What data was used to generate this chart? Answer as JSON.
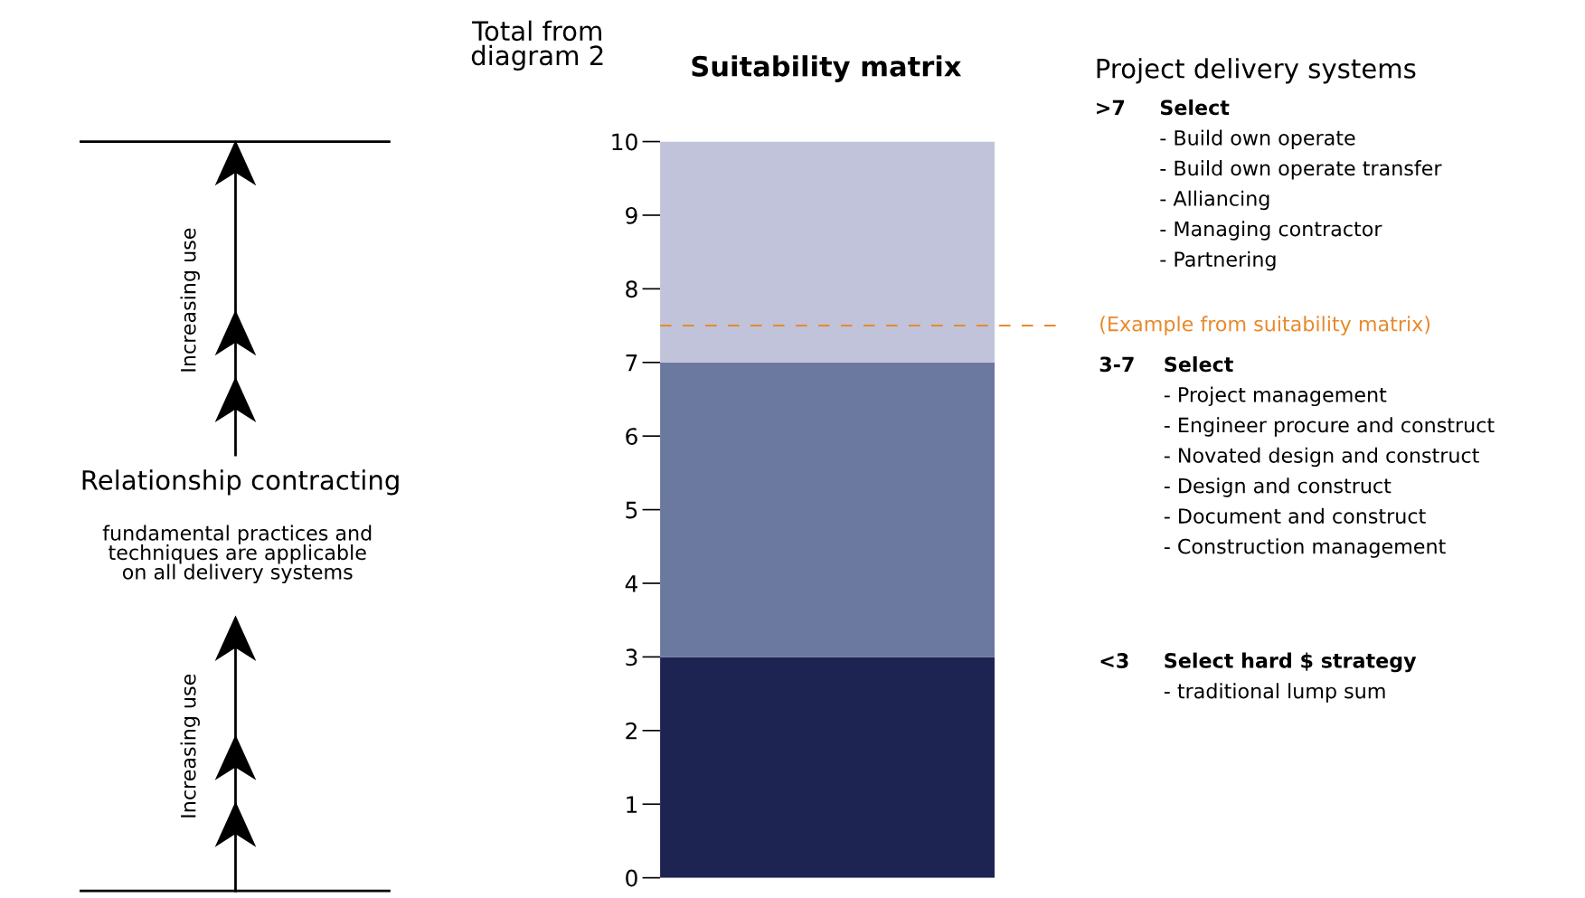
{
  "chart_data": {
    "type": "bar",
    "stacked": true,
    "title": "Suitability matrix",
    "ylabel": "Total from\ndiagram 2",
    "categories": [
      null
    ],
    "series": [
      {
        "color": "#1e2452",
        "values": [
          3
        ]
      },
      {
        "color": "#6b78a0",
        "values": [
          4
        ]
      },
      {
        "color": "#c0c3da",
        "values": [
          3
        ]
      }
    ],
    "ylim": [
      0,
      10
    ],
    "yticks": [
      0,
      1,
      2,
      3,
      4,
      5,
      6,
      7,
      8,
      9,
      10
    ],
    "grid": false,
    "legend": false,
    "ref_lines": [
      {
        "axis": "y",
        "value": 7.5,
        "label": "(Example from suitability matrix)",
        "color": "#e8892b",
        "line_style": "dashed"
      }
    ],
    "annotations": [
      "Project delivery systems",
      ">7",
      "Select",
      "- Build own operate",
      "- Build own operate transfer",
      "- Alliancing",
      "- Managing contractor",
      "- Partnering",
      "3-7",
      "Select",
      "- Project management",
      "- Engineer procure and construct",
      "- Novated design and construct",
      "- Design and construct",
      "- Document and construct",
      "- Construction management",
      "<3",
      "Select hard $ strategy",
      "- traditional lump sum",
      "Increasing use",
      "Increasing use",
      "Relationship contracting",
      "fundamental practices and\ntechniques are applicable\non all delivery systems"
    ]
  }
}
